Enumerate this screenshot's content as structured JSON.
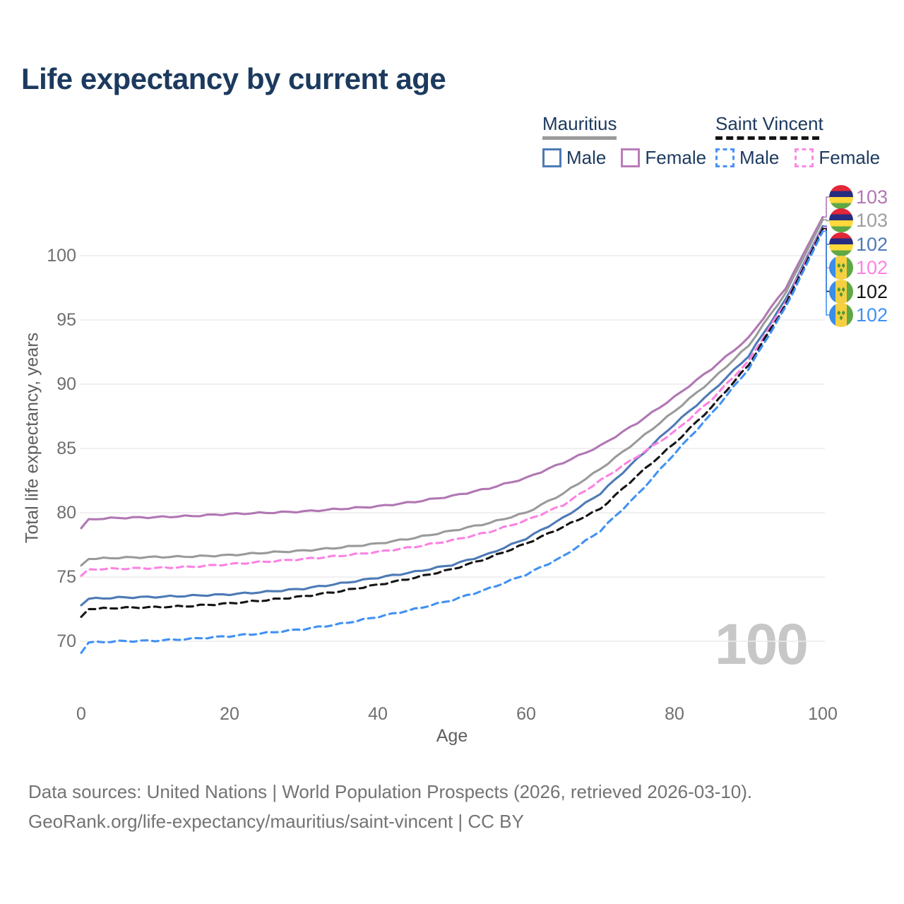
{
  "page": {
    "title": "Life expectancy by current age",
    "watermark": "100",
    "footer_line1": "Data sources: United Nations | World Population Prospects (2026, retrieved 2026-03-10).",
    "footer_line2": "GeoRank.org/life-expectancy/mauritius/saint-vincent | CC BY"
  },
  "legend": {
    "groups": [
      {
        "title": "Mauritius",
        "underline_style": "solid",
        "underline_color": "#9a9a9a",
        "underline_width": 105,
        "items": [
          {
            "label": "Male",
            "color": "#4d7ab5",
            "box_style": "solid"
          },
          {
            "label": "Female",
            "color": "#b97db8",
            "box_style": "solid"
          }
        ]
      },
      {
        "title": "Saint Vincent",
        "underline_style": "dashed",
        "underline_color": "#141414",
        "underline_width": 147,
        "items": [
          {
            "label": "Male",
            "color": "#4b93f2",
            "box_style": "dashed"
          },
          {
            "label": "Female",
            "color": "#fc8ae2",
            "box_style": "dashed"
          }
        ]
      }
    ]
  },
  "chart_data": {
    "type": "line",
    "title": "Life expectancy by current age",
    "xlabel": "Age",
    "ylabel": "Total life expectancy, years",
    "xlim": [
      0,
      100
    ],
    "ylim": [
      67,
      104
    ],
    "xticks": [
      0,
      20,
      40,
      60,
      80,
      100
    ],
    "yticks": [
      70,
      75,
      80,
      85,
      90,
      95,
      100
    ],
    "grid": "horizontal",
    "gridline_color": "#ebebeb",
    "x": [
      0,
      1,
      5,
      10,
      15,
      20,
      25,
      30,
      35,
      40,
      45,
      50,
      55,
      60,
      65,
      70,
      75,
      80,
      85,
      90,
      95,
      100
    ],
    "series": [
      {
        "name": "Mauritius Female",
        "country": "Mauritius",
        "sex": "Female",
        "line": "solid",
        "color": "#b177b3",
        "flag": "mauritius",
        "end_label": "103",
        "end_label_color": "#b177b3",
        "values": [
          78.8,
          79.5,
          79.6,
          79.65,
          79.75,
          79.9,
          80.0,
          80.1,
          80.3,
          80.5,
          80.85,
          81.3,
          81.9,
          82.7,
          83.9,
          85.2,
          87.0,
          89.0,
          91.2,
          93.6,
          97.5,
          103.0
        ]
      },
      {
        "name": "Mauritius Both sexes",
        "country": "Mauritius",
        "sex": "Both",
        "line": "solid",
        "color": "#9a9a9a",
        "flag": "mauritius",
        "end_label": "103",
        "end_label_color": "#9e9e9e",
        "values": [
          75.9,
          76.4,
          76.5,
          76.55,
          76.6,
          76.7,
          76.9,
          77.05,
          77.3,
          77.6,
          78.05,
          78.6,
          79.2,
          80.0,
          81.5,
          83.4,
          85.6,
          87.9,
          90.3,
          93.0,
          97.1,
          102.8
        ]
      },
      {
        "name": "Mauritius Male",
        "country": "Mauritius",
        "sex": "Male",
        "line": "solid",
        "color": "#4d7ab5",
        "flag": "mauritius",
        "end_label": "102",
        "end_label_color": "#4d7ab5",
        "values": [
          72.8,
          73.3,
          73.4,
          73.45,
          73.55,
          73.65,
          73.85,
          74.1,
          74.5,
          74.95,
          75.4,
          75.95,
          76.8,
          78.0,
          79.6,
          81.5,
          84.2,
          86.9,
          89.4,
          92.2,
          96.6,
          102.3
        ]
      },
      {
        "name": "Saint Vincent Female",
        "country": "Saint Vincent",
        "sex": "Female",
        "line": "dashed",
        "color": "#fc82e2",
        "flag": "saint-vincent",
        "end_label": "102",
        "end_label_color": "#fc82e2",
        "values": [
          75.1,
          75.6,
          75.65,
          75.7,
          75.8,
          76.0,
          76.2,
          76.4,
          76.65,
          76.95,
          77.35,
          77.85,
          78.5,
          79.4,
          80.6,
          82.5,
          84.4,
          86.3,
          88.8,
          91.8,
          96.4,
          102.2
        ]
      },
      {
        "name": "Saint Vincent Both sexes",
        "country": "Saint Vincent",
        "sex": "Both",
        "line": "dashed",
        "color": "#141414",
        "flag": "saint-vincent",
        "end_label": "102",
        "end_label_color": "#141414",
        "values": [
          71.9,
          72.5,
          72.6,
          72.65,
          72.75,
          72.95,
          73.2,
          73.5,
          73.9,
          74.4,
          74.95,
          75.6,
          76.5,
          77.6,
          78.9,
          80.3,
          82.9,
          85.4,
          88.2,
          91.5,
          96.2,
          102.1
        ]
      },
      {
        "name": "Saint Vincent Male",
        "country": "Saint Vincent",
        "sex": "Male",
        "line": "dashed",
        "color": "#4191f4",
        "flag": "saint-vincent",
        "end_label": "102",
        "end_label_color": "#4191f4",
        "values": [
          69.1,
          69.9,
          70.0,
          70.05,
          70.2,
          70.4,
          70.65,
          70.95,
          71.35,
          71.9,
          72.5,
          73.2,
          74.1,
          75.2,
          76.6,
          78.6,
          81.4,
          84.6,
          87.7,
          91.2,
          96.0,
          101.9
        ]
      }
    ]
  }
}
